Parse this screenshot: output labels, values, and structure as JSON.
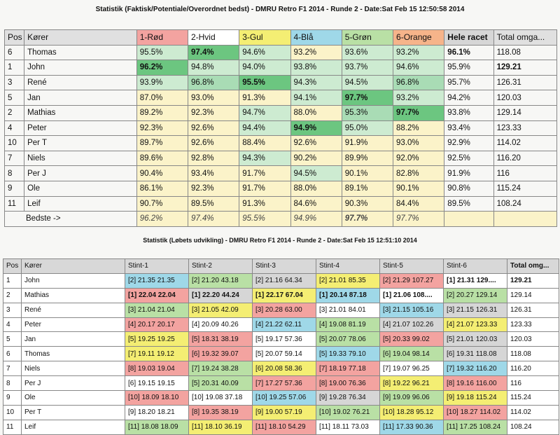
{
  "title1": "Statistik (Faktisk/Potentiale/Overordnet bedst) - DMRU Retro F1 2014 - Runde 2 - Date:Sat Feb 15 12:50:58 2014",
  "title2": "Statistik (Løbets udvikling) - DMRU Retro F1 2014 - Runde 2 - Date:Sat Feb 15 12:51:10 2014",
  "table1": {
    "headers": [
      "Pos",
      "Kører",
      "1-Rød",
      "2-Hvid",
      "3-Gul",
      "4-Blå",
      "5-Grøn",
      "6-Orange",
      "Hele racet",
      "Total omga..."
    ],
    "header_colors": [
      "#e0e0e0",
      "#e0e0e0",
      "#f3a3a0",
      "#ffffff",
      "#f4ee73",
      "#9fd8e8",
      "#b9e0a5",
      "#f6b48a",
      "#d6d6d6",
      "#e0e0e0"
    ],
    "rows": [
      {
        "pos": "6",
        "name": "Thomas",
        "c": [
          "95.5%",
          "97.4%",
          "94.6%",
          "93.2%",
          "93.6%",
          "93.2%"
        ],
        "race": "96.1%",
        "total": "118.08",
        "shade": [
          1,
          3,
          1,
          0,
          1,
          1
        ],
        "bold": [
          false,
          true,
          false,
          false,
          false,
          false
        ],
        "race_bold": true,
        "total_bold": false
      },
      {
        "pos": "1",
        "name": "John",
        "c": [
          "96.2%",
          "94.8%",
          "94.0%",
          "93.8%",
          "93.7%",
          "94.6%"
        ],
        "race": "95.9%",
        "total": "129.21",
        "shade": [
          3,
          1,
          1,
          1,
          1,
          1
        ],
        "bold": [
          true,
          false,
          false,
          false,
          false,
          false
        ],
        "race_bold": false,
        "total_bold": true
      },
      {
        "pos": "3",
        "name": "René",
        "c": [
          "93.9%",
          "96.8%",
          "95.5%",
          "94.3%",
          "94.5%",
          "96.8%"
        ],
        "race": "95.7%",
        "total": "126.31",
        "shade": [
          1,
          2,
          3,
          1,
          1,
          2
        ],
        "bold": [
          false,
          false,
          true,
          false,
          false,
          false
        ],
        "race_bold": false,
        "total_bold": false
      },
      {
        "pos": "5",
        "name": "Jan",
        "c": [
          "87.0%",
          "93.0%",
          "91.3%",
          "94.1%",
          "97.7%",
          "93.2%"
        ],
        "race": "94.2%",
        "total": "120.03",
        "shade": [
          0,
          0,
          0,
          1,
          3,
          1
        ],
        "bold": [
          false,
          false,
          false,
          false,
          true,
          false
        ],
        "race_bold": false,
        "total_bold": false
      },
      {
        "pos": "2",
        "name": "Mathias",
        "c": [
          "89.2%",
          "92.3%",
          "94.7%",
          "88.0%",
          "95.3%",
          "97.7%"
        ],
        "race": "93.8%",
        "total": "129.14",
        "shade": [
          0,
          0,
          1,
          0,
          2,
          3
        ],
        "bold": [
          false,
          false,
          false,
          false,
          false,
          true
        ],
        "race_bold": false,
        "total_bold": false
      },
      {
        "pos": "4",
        "name": "Peter",
        "c": [
          "92.3%",
          "92.6%",
          "94.4%",
          "94.9%",
          "95.0%",
          "88.2%"
        ],
        "race": "93.4%",
        "total": "123.33",
        "shade": [
          0,
          0,
          1,
          3,
          1,
          0
        ],
        "bold": [
          false,
          false,
          false,
          true,
          false,
          false
        ],
        "race_bold": false,
        "total_bold": false
      },
      {
        "pos": "10",
        "name": "Per T",
        "c": [
          "89.7%",
          "92.6%",
          "88.4%",
          "92.6%",
          "91.9%",
          "93.0%"
        ],
        "race": "92.9%",
        "total": "114.02",
        "shade": [
          0,
          0,
          0,
          0,
          0,
          0
        ],
        "bold": [
          false,
          false,
          false,
          false,
          false,
          false
        ],
        "race_bold": false,
        "total_bold": false
      },
      {
        "pos": "7",
        "name": "Niels",
        "c": [
          "89.6%",
          "92.8%",
          "94.3%",
          "90.2%",
          "89.9%",
          "92.0%"
        ],
        "race": "92.5%",
        "total": "116.20",
        "shade": [
          0,
          0,
          1,
          0,
          0,
          0
        ],
        "bold": [
          false,
          false,
          false,
          false,
          false,
          false
        ],
        "race_bold": false,
        "total_bold": false
      },
      {
        "pos": "8",
        "name": "Per J",
        "c": [
          "90.4%",
          "93.4%",
          "91.7%",
          "94.5%",
          "90.1%",
          "82.8%"
        ],
        "race": "91.9%",
        "total": "116",
        "shade": [
          0,
          0,
          0,
          1,
          0,
          0
        ],
        "bold": [
          false,
          false,
          false,
          false,
          false,
          false
        ],
        "race_bold": false,
        "total_bold": false
      },
      {
        "pos": "9",
        "name": "Ole",
        "c": [
          "86.1%",
          "92.3%",
          "91.7%",
          "88.0%",
          "89.1%",
          "90.1%"
        ],
        "race": "90.8%",
        "total": "115.24",
        "shade": [
          0,
          0,
          0,
          0,
          0,
          0
        ],
        "bold": [
          false,
          false,
          false,
          false,
          false,
          false
        ],
        "race_bold": false,
        "total_bold": false
      },
      {
        "pos": "11",
        "name": "Leif",
        "c": [
          "90.7%",
          "89.5%",
          "91.3%",
          "84.6%",
          "90.3%",
          "84.4%"
        ],
        "race": "89.5%",
        "total": "108.24",
        "shade": [
          0,
          0,
          0,
          0,
          0,
          0
        ],
        "bold": [
          false,
          false,
          false,
          false,
          false,
          false
        ],
        "race_bold": false,
        "total_bold": false
      }
    ],
    "best_label": "Bedste ->",
    "best": [
      "96.2%",
      "97.4%",
      "95.5%",
      "94.9%",
      "97.7%",
      "97.7%"
    ],
    "best_bold": [
      false,
      false,
      false,
      false,
      true,
      false
    ]
  },
  "table2": {
    "headers": [
      "Pos",
      "Kører",
      "Stint-1",
      "Stint-2",
      "Stint-3",
      "Stint-4",
      "Stint-5",
      "Stint-6",
      "Total omg..."
    ],
    "rows": [
      {
        "pos": "1",
        "name": "John",
        "s": [
          "[2] 21.35 21.35",
          "[2] 21.20 43.18",
          "[2] 21.16 64.34",
          "[2] 21.01 85.35",
          "[2] 21.29 107.27",
          "[1] 21.31 129...."
        ],
        "col": [
          "b",
          "g",
          "gr",
          "y",
          "r",
          "w"
        ],
        "bold": [
          false,
          false,
          false,
          false,
          false,
          true
        ],
        "total": "129.21",
        "total_bold": true
      },
      {
        "pos": "2",
        "name": "Mathias",
        "s": [
          "[1] 22.04 22.04",
          "[1] 22.20 44.24",
          "[1] 22.17 67.04",
          "[1] 20.14 87.18",
          "[1] 21.06 108....",
          "[2] 20.27 129.14"
        ],
        "col": [
          "r",
          "gr",
          "y",
          "b",
          "w",
          "g"
        ],
        "bold": [
          true,
          true,
          true,
          true,
          true,
          false
        ],
        "total": "129.14",
        "total_bold": false
      },
      {
        "pos": "3",
        "name": "René",
        "s": [
          "[3] 21.04 21.04",
          "[3] 21.05 42.09",
          "[3] 20.28 63.00",
          "[3] 21.01 84.01",
          "[3] 21.15 105.16",
          "[3] 21.15 126.31"
        ],
        "col": [
          "g",
          "y",
          "r",
          "w",
          "b",
          "gr"
        ],
        "bold": [
          false,
          false,
          false,
          false,
          false,
          false
        ],
        "total": "126.31",
        "total_bold": false
      },
      {
        "pos": "4",
        "name": "Peter",
        "s": [
          "[4] 20.17 20.17",
          "[4] 20.09 40.26",
          "[4] 21.22 62.11",
          "[4] 19.08 81.19",
          "[4] 21.07 102.26",
          "[4] 21.07 123.33"
        ],
        "col": [
          "r",
          "w",
          "b",
          "g",
          "gr",
          "y"
        ],
        "bold": [
          false,
          false,
          false,
          false,
          false,
          false
        ],
        "total": "123.33",
        "total_bold": false
      },
      {
        "pos": "5",
        "name": "Jan",
        "s": [
          "[5] 19.25 19.25",
          "[5] 18.31 38.19",
          "[5] 19.17 57.36",
          "[5] 20.07 78.06",
          "[5] 20.33 99.02",
          "[5] 21.01 120.03"
        ],
        "col": [
          "y",
          "r",
          "w",
          "g",
          "r",
          "gr"
        ],
        "bold": [
          false,
          false,
          false,
          false,
          false,
          false
        ],
        "total": "120.03",
        "total_bold": false
      },
      {
        "pos": "6",
        "name": "Thomas",
        "s": [
          "[7] 19.11 19.12",
          "[6] 19.32 39.07",
          "[5] 20.07 59.14",
          "[5] 19.33 79.10",
          "[6] 19.04 98.14",
          "[6] 19.31 118.08"
        ],
        "col": [
          "y",
          "r",
          "w",
          "b",
          "g",
          "gr"
        ],
        "bold": [
          false,
          false,
          false,
          false,
          false,
          false
        ],
        "total": "118.08",
        "total_bold": false
      },
      {
        "pos": "7",
        "name": "Niels",
        "s": [
          "[8] 19.03 19.04",
          "[7] 19.24 38.28",
          "[6] 20.08 58.36",
          "[7] 18.19 77.18",
          "[7] 19.07 96.25",
          "[7] 19.32 116.20"
        ],
        "col": [
          "r",
          "g",
          "y",
          "r",
          "w",
          "b"
        ],
        "bold": [
          false,
          false,
          false,
          false,
          false,
          false
        ],
        "total": "116.20",
        "total_bold": false
      },
      {
        "pos": "8",
        "name": "Per J",
        "s": [
          "[6] 19.15 19.15",
          "[5] 20.31 40.09",
          "[7] 17.27 57.36",
          "[8] 19.00 76.36",
          "[8] 19.22 96.21",
          "[8] 19.16 116.00"
        ],
        "col": [
          "w",
          "g",
          "r",
          "r",
          "y",
          "r"
        ],
        "bold": [
          false,
          false,
          false,
          false,
          false,
          false
        ],
        "total": "116",
        "total_bold": false
      },
      {
        "pos": "9",
        "name": "Ole",
        "s": [
          "[10] 18.09 18.10",
          "[10] 19.08 37.18",
          "[10] 19.25 57.06",
          "[9] 19.28 76.34",
          "[9] 19.09 96.06",
          "[9] 19.18 115.24"
        ],
        "col": [
          "r",
          "w",
          "b",
          "gr",
          "g",
          "y"
        ],
        "bold": [
          false,
          false,
          false,
          false,
          false,
          false
        ],
        "total": "115.24",
        "total_bold": false
      },
      {
        "pos": "10",
        "name": "Per T",
        "s": [
          "[9] 18.20 18.21",
          "[8] 19.35 38.19",
          "[9] 19.00 57.19",
          "[10] 19.02 76.21",
          "[10] 18.28 95.12",
          "[10] 18.27 114.02"
        ],
        "col": [
          "w",
          "r",
          "y",
          "g",
          "y",
          "r"
        ],
        "bold": [
          false,
          false,
          false,
          false,
          false,
          false
        ],
        "total": "114.02",
        "total_bold": false
      },
      {
        "pos": "11",
        "name": "Leif",
        "s": [
          "[11] 18.08 18.09",
          "[11] 18.10 36.19",
          "[11] 18.10 54.29",
          "[11] 18.11 73.03",
          "[11] 17.33 90.36",
          "[11] 17.25 108.24"
        ],
        "col": [
          "g",
          "y",
          "r",
          "w",
          "b",
          "g"
        ],
        "bold": [
          false,
          false,
          false,
          false,
          false,
          false
        ],
        "total": "108.24",
        "total_bold": false
      }
    ]
  }
}
